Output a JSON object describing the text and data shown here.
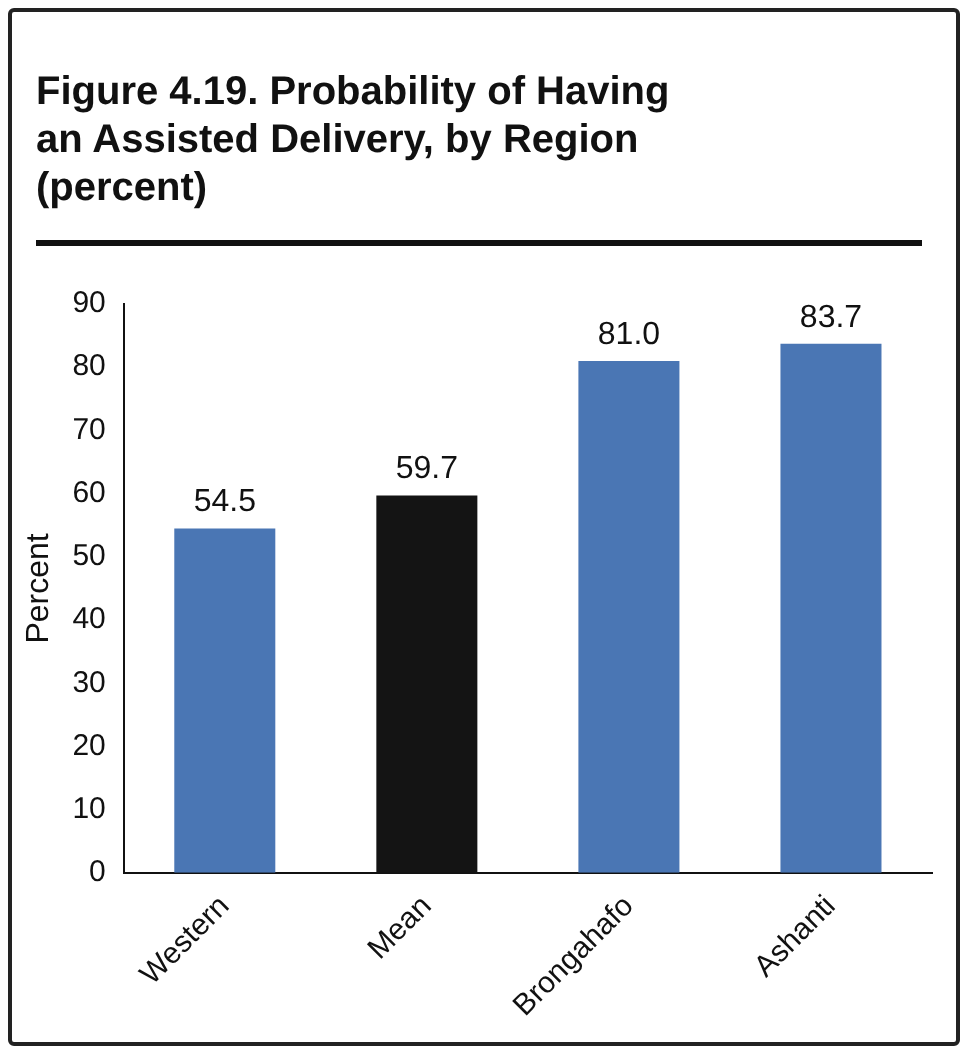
{
  "chart_data": {
    "type": "bar",
    "title": "Figure 4.19. Probability of Having an Assisted Delivery, by Region (percent)",
    "ylabel": "Percent",
    "categories": [
      "Western",
      "Mean",
      "Brongahafo",
      "Ashanti"
    ],
    "values": [
      54.5,
      59.7,
      81.0,
      83.7
    ],
    "colors": [
      "#4a76b4",
      "#141414",
      "#4a76b4",
      "#4a76b4"
    ],
    "ylim": [
      0,
      90
    ],
    "yticks": [
      0,
      10,
      20,
      30,
      40,
      50,
      60,
      70,
      80,
      90
    ],
    "value_labels": [
      "54.5",
      "59.7",
      "81.0",
      "83.7"
    ],
    "grid": false,
    "legend": false
  }
}
